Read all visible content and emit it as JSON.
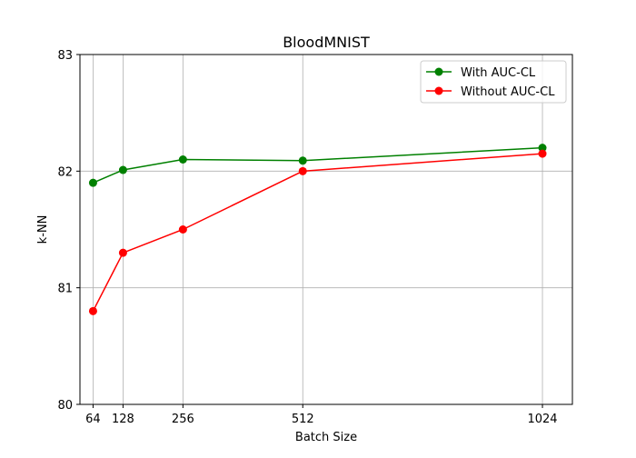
{
  "chart_data": {
    "type": "line",
    "title": "BloodMNIST",
    "xlabel": "Batch Size",
    "ylabel": "k-NN",
    "x": [
      64,
      128,
      256,
      512,
      1024
    ],
    "xtick_labels": [
      "64",
      "128",
      "256",
      "512",
      "1024"
    ],
    "xlim": [
      36,
      1088
    ],
    "ylim": [
      80,
      83
    ],
    "yticks": [
      80,
      81,
      82,
      83
    ],
    "ytick_labels": [
      "80",
      "81",
      "82",
      "83"
    ],
    "grid": true,
    "legend_position": "top-right",
    "series": [
      {
        "name": "With AUC-CL",
        "color": "#008000",
        "marker": "circle",
        "values": [
          81.9,
          82.01,
          82.1,
          82.09,
          82.2
        ]
      },
      {
        "name": "Without AUC-CL",
        "color": "#ff0000",
        "marker": "circle",
        "values": [
          80.8,
          81.3,
          81.5,
          82.0,
          82.15
        ]
      }
    ]
  }
}
